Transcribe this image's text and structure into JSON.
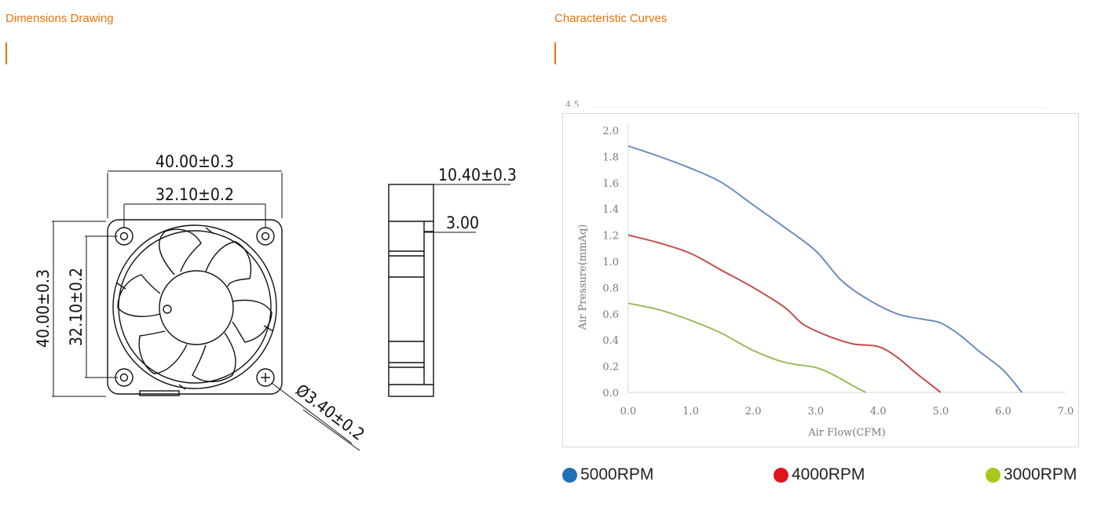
{
  "left_section": {
    "title": "Dimensions Drawing"
  },
  "right_section": {
    "title": "Characteristic Curves"
  },
  "drawing": {
    "dim_width_outer": "40.00±0.3",
    "dim_width_holes": "32.10±0.2",
    "dim_height_outer": "40.00±0.3",
    "dim_height_holes": "32.10±0.2",
    "dim_hole_diameter": "Ø3.40±0.2",
    "dim_thickness": "10.40±0.3",
    "dim_flange": "3.00"
  },
  "cut_off_label": "4.5",
  "chart_data": {
    "type": "line",
    "xlabel": "Air Flow(CFM)",
    "ylabel": "Air Pressure(mmAq)",
    "xlim": [
      0,
      7
    ],
    "ylim": [
      0,
      2
    ],
    "x_ticks": [
      "0.0",
      "1.0",
      "2.0",
      "3.0",
      "4.0",
      "5.0",
      "6.0",
      "7.0"
    ],
    "y_ticks": [
      "0.0",
      "0.2",
      "0.4",
      "0.6",
      "0.8",
      "1.0",
      "1.2",
      "1.4",
      "1.6",
      "1.8",
      "2.0"
    ],
    "grid": false,
    "series": [
      {
        "name": "5000RPM",
        "color": "#6c8ebf",
        "x": [
          0,
          0.5,
          1.0,
          1.5,
          2.0,
          2.5,
          3.0,
          3.4,
          3.8,
          4.3,
          4.7,
          5.0,
          5.3,
          5.6,
          6.0,
          6.3
        ],
        "y": [
          1.88,
          1.8,
          1.71,
          1.6,
          1.43,
          1.26,
          1.08,
          0.86,
          0.72,
          0.6,
          0.56,
          0.53,
          0.44,
          0.32,
          0.17,
          0.0
        ]
      },
      {
        "name": "4000RPM",
        "color": "#c0504d",
        "x": [
          0,
          0.5,
          1.0,
          1.5,
          2.0,
          2.5,
          2.8,
          3.2,
          3.6,
          4.0,
          4.3,
          4.6,
          5.0
        ],
        "y": [
          1.2,
          1.14,
          1.06,
          0.93,
          0.8,
          0.65,
          0.52,
          0.43,
          0.37,
          0.35,
          0.27,
          0.15,
          0.0
        ]
      },
      {
        "name": "3000RPM",
        "color": "#9bbb59",
        "x": [
          0,
          0.5,
          1.0,
          1.5,
          2.0,
          2.5,
          3.0,
          3.3,
          3.6,
          3.8
        ],
        "y": [
          0.68,
          0.63,
          0.55,
          0.45,
          0.32,
          0.23,
          0.19,
          0.13,
          0.05,
          0.0
        ]
      }
    ]
  },
  "legend": [
    {
      "label": "5000RPM",
      "color": "#1f6fb5"
    },
    {
      "label": "4000RPM",
      "color": "#e0141e"
    },
    {
      "label": "3000RPM",
      "color": "#a7c918"
    }
  ]
}
